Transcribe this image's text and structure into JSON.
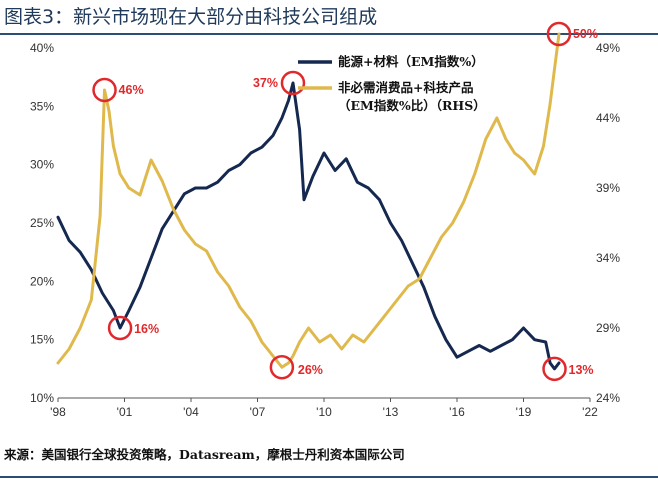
{
  "title": "图表3：新兴市场现在大部分由科技公司组成",
  "source": "来源：美国银行全球投资策略，Datasream，摩根士丹利资本国际公司",
  "colors": {
    "navy": "#15284f",
    "gold": "#e0b94d",
    "red": "#e0292c",
    "rule": "#2c4d74"
  },
  "chart_data": {
    "type": "line",
    "x_ticks": [
      "'98",
      "'01",
      "'04",
      "'07",
      "'10",
      "'13",
      "'16",
      "'19",
      "'22"
    ],
    "xlim": [
      1998,
      2022
    ],
    "y_left": {
      "ticks": [
        "10%",
        "15%",
        "20%",
        "25%",
        "30%",
        "35%",
        "40%"
      ],
      "ylim": [
        10,
        40
      ]
    },
    "y_right": {
      "ticks": [
        "24%",
        "29%",
        "34%",
        "39%",
        "44%",
        "49%"
      ],
      "ylim": [
        24,
        49
      ]
    },
    "legend": [
      "能源+材料（EM指数%）",
      "非必需消费品+科技产品",
      "（EM指数%比）（RHS）"
    ],
    "series": [
      {
        "name": "能源+材料（EM指数%）",
        "axis": "left",
        "color": "#15284f",
        "x": [
          1998.0,
          1998.5,
          1999.0,
          1999.5,
          2000.0,
          2000.5,
          2000.8,
          2001.2,
          2001.7,
          2002.2,
          2002.7,
          2003.2,
          2003.7,
          2004.2,
          2004.7,
          2005.2,
          2005.7,
          2006.2,
          2006.7,
          2007.2,
          2007.7,
          2008.1,
          2008.4,
          2008.6,
          2008.9,
          2009.1,
          2009.5,
          2010.0,
          2010.5,
          2011.0,
          2011.5,
          2012.0,
          2012.5,
          2013.0,
          2013.5,
          2014.0,
          2014.5,
          2015.0,
          2015.5,
          2016.0,
          2016.5,
          2017.0,
          2017.5,
          2018.0,
          2018.5,
          2019.0,
          2019.5,
          2020.0,
          2020.2,
          2020.4,
          2020.6
        ],
        "values": [
          25.5,
          23.5,
          22.5,
          21.0,
          19.0,
          17.5,
          16.0,
          17.5,
          19.5,
          22.0,
          24.5,
          26.0,
          27.5,
          28.0,
          28.0,
          28.5,
          29.5,
          30.0,
          31.0,
          31.5,
          32.5,
          34.0,
          35.5,
          37.0,
          33.0,
          27.0,
          29.0,
          31.0,
          29.5,
          30.5,
          28.5,
          28.0,
          27.0,
          25.0,
          23.5,
          21.5,
          19.5,
          17.0,
          15.0,
          13.5,
          14.0,
          14.5,
          14.0,
          14.5,
          15.0,
          16.0,
          15.0,
          14.8,
          13.0,
          12.5,
          13.0
        ]
      },
      {
        "name": "非必需消费品+科技产品（EM指数%比）（RHS）",
        "axis": "right",
        "color": "#e0b94d",
        "x": [
          1998.0,
          1998.5,
          1999.0,
          1999.5,
          1999.9,
          2000.1,
          2000.3,
          2000.5,
          2000.8,
          2001.2,
          2001.7,
          2002.2,
          2002.7,
          2003.2,
          2003.7,
          2004.2,
          2004.7,
          2005.2,
          2005.7,
          2006.2,
          2006.7,
          2007.2,
          2007.7,
          2008.1,
          2008.4,
          2008.6,
          2008.9,
          2009.3,
          2009.8,
          2010.3,
          2010.8,
          2011.3,
          2011.8,
          2012.3,
          2012.8,
          2013.3,
          2013.8,
          2014.3,
          2014.8,
          2015.3,
          2015.8,
          2016.3,
          2016.8,
          2017.3,
          2017.8,
          2018.2,
          2018.6,
          2019.0,
          2019.5,
          2019.9,
          2020.2,
          2020.4,
          2020.6
        ],
        "values": [
          26.5,
          27.5,
          29.0,
          31.0,
          37.0,
          46.0,
          44.5,
          42.0,
          40.0,
          39.0,
          38.5,
          41.0,
          39.5,
          37.5,
          36.0,
          35.0,
          34.5,
          33.0,
          32.0,
          30.5,
          29.5,
          28.0,
          27.0,
          26.2,
          26.5,
          27.0,
          28.0,
          29.0,
          28.0,
          28.5,
          27.5,
          28.5,
          28.0,
          29.0,
          30.0,
          31.0,
          32.0,
          32.5,
          34.0,
          35.5,
          36.5,
          38.0,
          40.0,
          42.5,
          44.0,
          42.5,
          41.5,
          41.0,
          40.0,
          42.0,
          45.0,
          47.5,
          50.0
        ]
      }
    ],
    "annotations": [
      "37%",
      "46%",
      "16%",
      "26%",
      "50%",
      "13%"
    ]
  }
}
